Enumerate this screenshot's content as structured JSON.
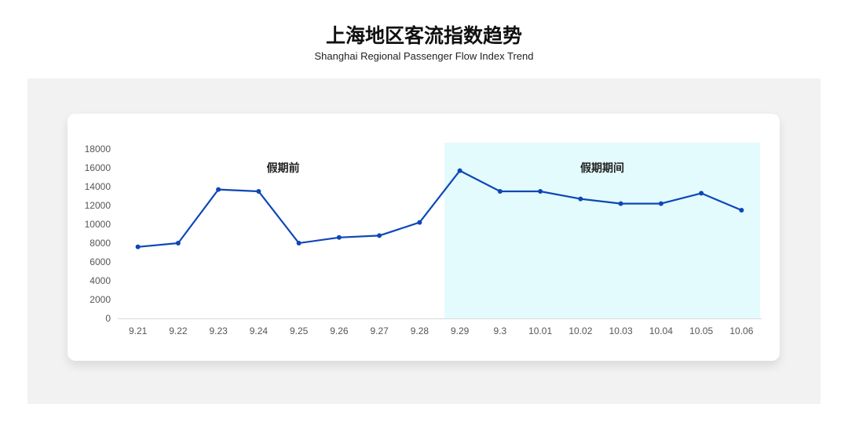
{
  "header": {
    "title": "上海地区客流指数趋势",
    "subtitle": "Shanghai Regional Passenger Flow Index Trend"
  },
  "chart_data": {
    "type": "line",
    "title": "上海地区客流指数趋势",
    "subtitle": "Shanghai Regional Passenger Flow Index Trend",
    "categories": [
      "9.21",
      "9.22",
      "9.23",
      "9.24",
      "9.25",
      "9.26",
      "9.27",
      "9.28",
      "9.29",
      "9.3",
      "10.01",
      "10.02",
      "10.03",
      "10.04",
      "10.05",
      "10.06"
    ],
    "values": [
      7600,
      8000,
      13700,
      13500,
      8000,
      8600,
      8800,
      10200,
      15700,
      13500,
      13500,
      12700,
      12200,
      12200,
      13300,
      11500
    ],
    "ylim": [
      0,
      18000
    ],
    "yticks": [
      0,
      2000,
      4000,
      6000,
      8000,
      10000,
      12000,
      14000,
      16000,
      18000
    ],
    "grid": false,
    "line_color": "#0d47b8",
    "highlight": {
      "from": "9.29",
      "to": "10.06",
      "color": "#e4fbfd",
      "label": "假期期间"
    },
    "annotations": [
      {
        "label": "假期前",
        "at": "9.25"
      }
    ]
  }
}
